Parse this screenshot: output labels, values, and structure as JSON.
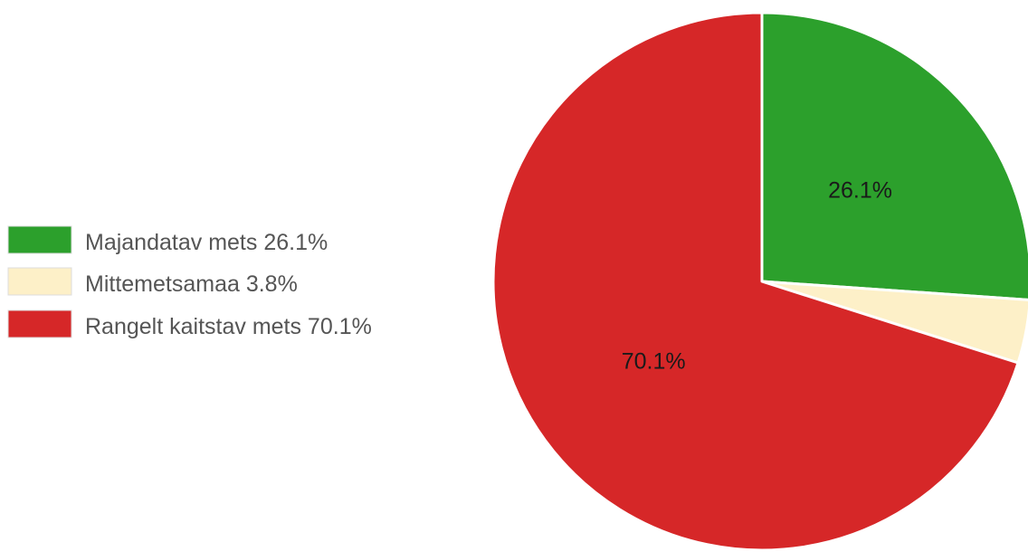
{
  "chart_data": {
    "type": "pie",
    "start_angle_deg": 0,
    "direction": "clockwise",
    "slices": [
      {
        "name": "Majandatav mets",
        "value": 26.1,
        "color": "#2ca02c",
        "label": "26.1%",
        "legend_label": "Majandatav mets 26.1%",
        "show_label": true
      },
      {
        "name": "Mittemetsamaa",
        "value": 3.8,
        "color": "#fdf0c8",
        "label": "3.8%",
        "legend_label": "Mittemetsamaa 3.8%",
        "show_label": false
      },
      {
        "name": "Rangelt kaitstav mets",
        "value": 70.1,
        "color": "#d62728",
        "label": "70.1%",
        "legend_label": "Rangelt kaitstav mets 70.1%",
        "show_label": true
      }
    ],
    "legend_position": "left"
  }
}
